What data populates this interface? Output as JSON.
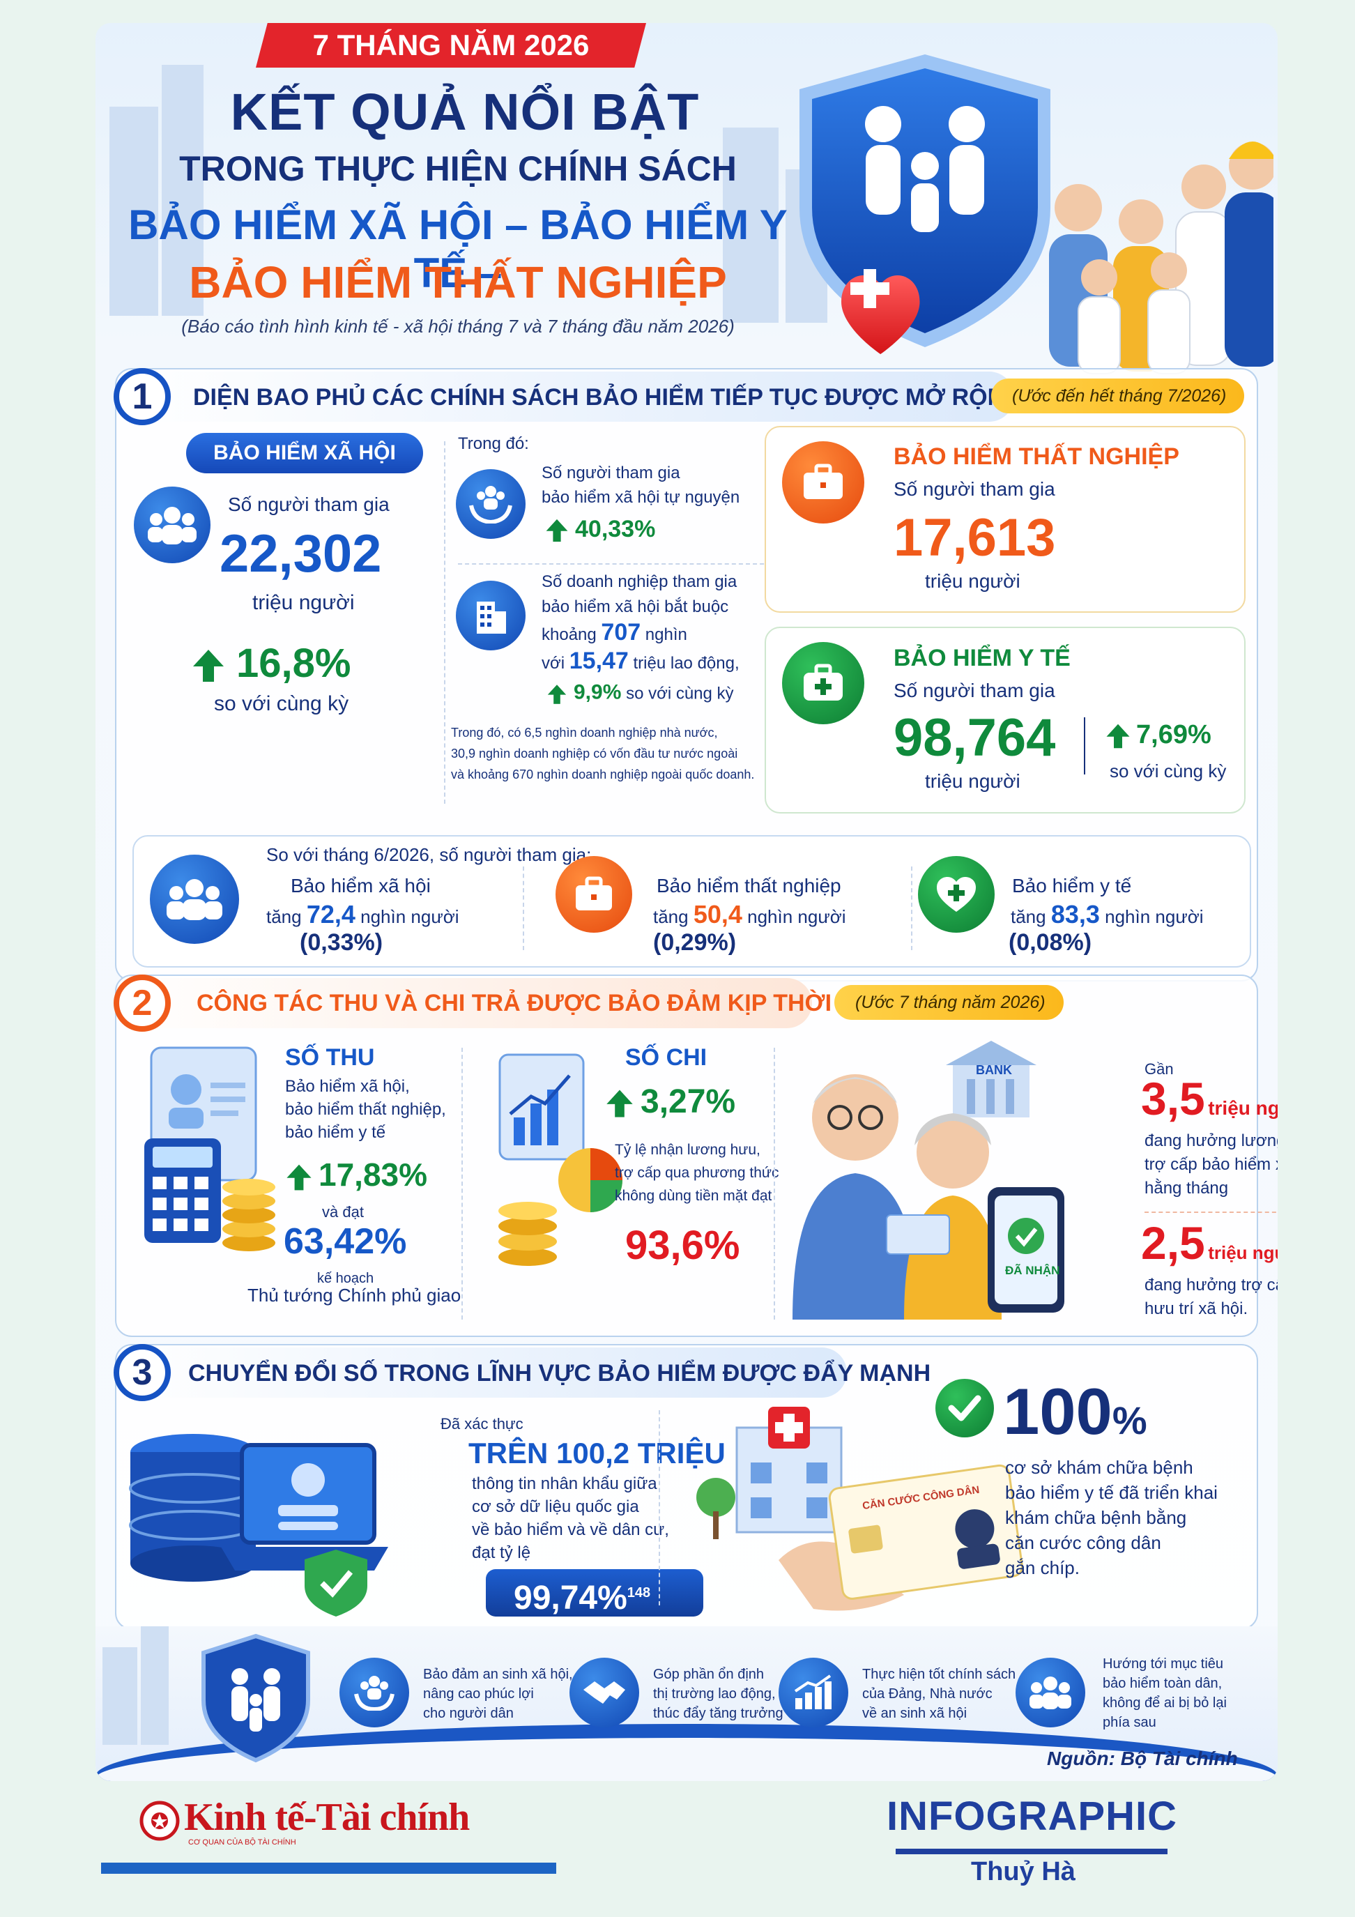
{
  "header": {
    "ribbon": "7 THÁNG NĂM 2026",
    "title_line1": "KẾT QUẢ NỔI BẬT",
    "title_line2": "TRONG THỰC HIỆN CHÍNH SÁCH",
    "title_line3": "BẢO HIỂM XÃ HỘI – BẢO HIỂM Y TẾ –",
    "title_line4": "BẢO HIỂM THẤT NGHIỆP",
    "subtitle": "(Báo cáo tình hình kinh tế - xã hội tháng 7 và 7 tháng đầu năm 2026)"
  },
  "section1": {
    "number": "1",
    "title": "DIỆN BAO PHỦ CÁC CHÍNH SÁCH BẢO HIỂM TIẾP TỤC ĐƯỢC MỞ RỘNG",
    "pill": "(Ước đến hết tháng 7/2026)",
    "bhxh": {
      "label": "BẢO HIỂM XÃ HỘI",
      "desc": "Số người tham gia",
      "value": "22,302",
      "unit": "triệu người",
      "growth": "16,8%",
      "compare": "so với cùng kỳ"
    },
    "trong_do": "Trong đó:",
    "tunguyen": {
      "line1": "Số người tham gia",
      "line2": "bảo hiểm xã hội tự nguyện",
      "growth": "40,33%"
    },
    "doanhnghiep": {
      "line1": "Số doanh nghiệp tham gia",
      "line2": "bảo hiểm xã hội bắt buộc",
      "line3a": "khoảng ",
      "line3b": "707",
      "line3c": " nghìn",
      "line4a": "với ",
      "line4b": "15,47",
      "line4c": " triệu lao động,",
      "growth": "9,9%",
      "growth_suffix": "so với cùng kỳ"
    },
    "note_line1": "Trong đó, có 6,5 nghìn doanh nghiệp nhà nước,",
    "note_line2": "30,9 nghìn doanh nghiệp có vốn đầu tư nước ngoài",
    "note_line3": "và khoảng 670 nghìn doanh nghiệp ngoài quốc doanh.",
    "bhtn": {
      "label": "BẢO HIỂM THẤT NGHIỆP",
      "desc": "Số người tham gia",
      "value": "17,613",
      "unit": "triệu người"
    },
    "bhyt": {
      "label": "BẢO HIỂM Y TẾ",
      "desc": "Số người tham gia",
      "value": "98,764",
      "unit": "triệu người",
      "growth": "7,69%",
      "compare": "so với cùng kỳ"
    },
    "compare_box": {
      "heading": "So với tháng 6/2026, số người tham gia:",
      "items": [
        {
          "label": "Bảo hiểm xã hội",
          "prefix": "tăng ",
          "value": "72,4",
          "unit": " nghìn người",
          "pct": "(0,33%)"
        },
        {
          "label": "Bảo hiểm thất nghiệp",
          "prefix": "tăng ",
          "value": "50,4",
          "unit": " nghìn người",
          "pct": "(0,29%)"
        },
        {
          "label": "Bảo hiểm y tế",
          "prefix": "tăng ",
          "value": "83,3",
          "unit": " nghìn người",
          "pct": "(0,08%)"
        }
      ]
    }
  },
  "section2": {
    "number": "2",
    "title": "CÔNG TÁC THU VÀ CHI TRẢ ĐƯỢC BẢO ĐẢM KỊP THỜI",
    "pill": "(Ước 7 tháng năm 2026)",
    "sothu": {
      "label": "SỐ THU",
      "line1": "Bảo hiểm xã hội,",
      "line2": "bảo hiểm thất nghiệp,",
      "line3": "bảo hiểm y tế",
      "growth": "17,83%",
      "and": "và đạt",
      "value": "63,42%",
      "line4": "kế hoạch",
      "line5": "Thủ tướng Chính phủ giao"
    },
    "sochi": {
      "label": "SỐ CHI",
      "growth": "3,27%",
      "line1": "Tỷ lệ nhận lương hưu,",
      "line2": "trợ cấp qua phương thức",
      "line3": "không dùng tiền mặt đạt",
      "value": "93,6%"
    },
    "bank_sign": "BANK",
    "phone_text": "ĐÃ NHẬN",
    "pension": {
      "gan": "Gần",
      "value1": "3,5",
      "unit1": "triệu người",
      "desc1_l1": "đang hưởng lương hưu,",
      "desc1_l2": "trợ cấp bảo hiểm xã hội",
      "desc1_l3": "hằng tháng",
      "value2": "2,5",
      "unit2": "triệu người",
      "desc2_l1": "đang hưởng trợ cấp",
      "desc2_l2": "hưu trí xã hội."
    }
  },
  "section3": {
    "number": "3",
    "title": "CHUYỂN ĐỔI SỐ TRONG LĨNH VỰC BẢO HIỂM ĐƯỢC ĐẨY MẠNH",
    "verified": "Đã xác thực",
    "value": "TRÊN 100,2 TRIỆU",
    "line1": "thông tin nhân khẩu giữa",
    "line2": "cơ sở dữ liệu quốc gia",
    "line3": "về bảo hiểm và về dân cư,",
    "line4": "đạt tỷ lệ",
    "rate": "99,74%",
    "rate_sup": "148",
    "card_title": "CĂN CƯỚC CÔNG DÂN",
    "pct100": "100",
    "pct_sign": "%",
    "desc_l1": "cơ sở khám chữa bệnh",
    "desc_l2": "bảo hiểm y tế đã triển khai",
    "desc_l3": "khám chữa bệnh bằng",
    "desc_l4": "căn cước công dân",
    "desc_l5": "gắn chíp."
  },
  "goals": [
    {
      "l1": "Bảo đảm an sinh xã hội,",
      "l2": "nâng cao phúc lợi",
      "l3": "cho người dân",
      "l4": ""
    },
    {
      "l1": "Góp phần ổn định",
      "l2": "thị trường lao động,",
      "l3": "thúc đẩy tăng trưởng",
      "l4": ""
    },
    {
      "l1": "Thực hiện tốt chính sách",
      "l2": "của Đảng, Nhà nước",
      "l3": "về an sinh xã hội",
      "l4": ""
    },
    {
      "l1": "Hướng tới mục tiêu",
      "l2": "bảo hiểm toàn dân,",
      "l3": "không để ai bị bỏ lại",
      "l4": "phía sau"
    }
  ],
  "source": "Nguồn: Bộ Tài chính",
  "brand": {
    "name": "Kinh tế-Tài chính",
    "tagline": "CƠ QUAN CỦA BỘ TÀI CHÍNH"
  },
  "credit": {
    "label": "INFOGRAPHIC",
    "author": "Thuỷ Hà"
  },
  "colors": {
    "navy": "#16307a",
    "blue": "#1658c8",
    "orange": "#f05a1a",
    "red": "#e11b22",
    "green": "#0f8a3c"
  }
}
